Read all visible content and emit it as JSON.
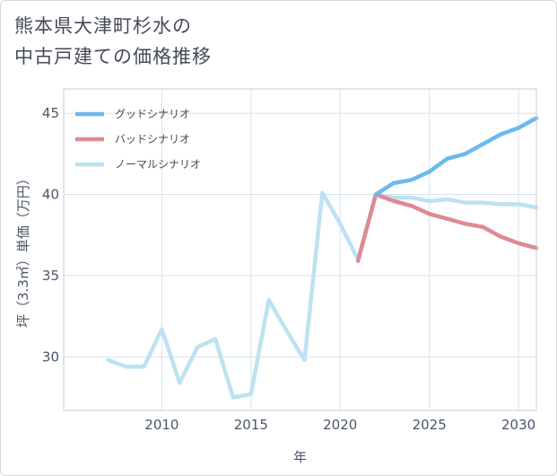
{
  "chart_data": {
    "type": "line",
    "title_lines": [
      "熊本県大津町杉水の",
      "中古戸建ての価格推移"
    ],
    "xlabel": "年",
    "ylabel": "坪（3.3㎡）単価（万円）",
    "xlim": [
      2004.5,
      2031
    ],
    "ylim": [
      26.7,
      46.5
    ],
    "x_ticks": [
      2010,
      2015,
      2020,
      2025,
      2030
    ],
    "y_ticks": [
      30,
      35,
      40,
      45
    ],
    "grid": true,
    "legend_position": "top-left",
    "series": [
      {
        "name": "グッドシナリオ",
        "color": "#6cb9ef",
        "points": [
          [
            2022,
            40.0
          ],
          [
            2023,
            40.7
          ],
          [
            2024,
            40.9
          ],
          [
            2025,
            41.4
          ],
          [
            2026,
            42.2
          ],
          [
            2027,
            42.5
          ],
          [
            2028,
            43.1
          ],
          [
            2029,
            43.7
          ],
          [
            2030,
            44.1
          ],
          [
            2031,
            44.7
          ]
        ]
      },
      {
        "name": "バッドシナリオ",
        "color": "#dd8a91",
        "points": [
          [
            2021,
            35.9
          ],
          [
            2022,
            40.0
          ],
          [
            2023,
            39.6
          ],
          [
            2024,
            39.3
          ],
          [
            2025,
            38.8
          ],
          [
            2026,
            38.5
          ],
          [
            2027,
            38.2
          ],
          [
            2028,
            38.0
          ],
          [
            2029,
            37.4
          ],
          [
            2030,
            37.0
          ],
          [
            2031,
            36.7
          ]
        ]
      },
      {
        "name": "ノーマルシナリオ",
        "color": "#bde2f1",
        "points": [
          [
            2007,
            29.8
          ],
          [
            2008,
            29.4
          ],
          [
            2009,
            29.4
          ],
          [
            2010,
            31.7
          ],
          [
            2011,
            28.4
          ],
          [
            2012,
            30.6
          ],
          [
            2013,
            31.1
          ],
          [
            2014,
            27.5
          ],
          [
            2015,
            27.7
          ],
          [
            2016,
            33.5
          ],
          [
            2017,
            31.6
          ],
          [
            2018,
            29.8
          ],
          [
            2019,
            40.1
          ],
          [
            2020,
            38.2
          ],
          [
            2021,
            36.0
          ],
          [
            2022,
            40.0
          ],
          [
            2023,
            39.8
          ],
          [
            2024,
            39.8
          ],
          [
            2025,
            39.6
          ],
          [
            2026,
            39.7
          ],
          [
            2027,
            39.5
          ],
          [
            2028,
            39.5
          ],
          [
            2029,
            39.4
          ],
          [
            2030,
            39.4
          ],
          [
            2031,
            39.2
          ]
        ]
      }
    ]
  }
}
